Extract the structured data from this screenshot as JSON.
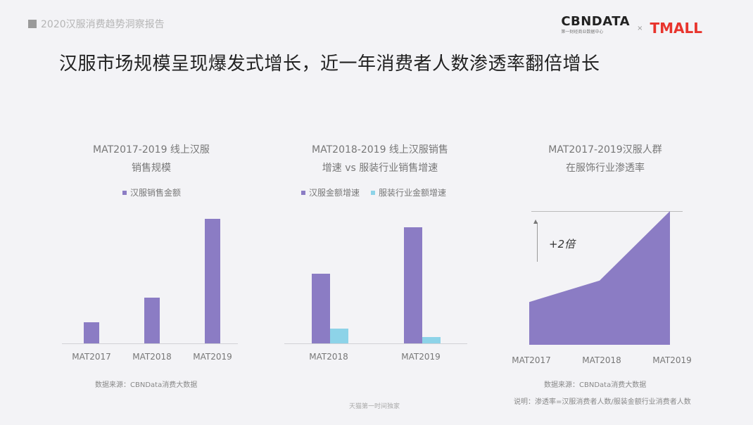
{
  "header": {
    "report_tag": "2020汉服消费趋势洞察报告",
    "logo_cbn": "CBNDATA",
    "logo_cbn_sub": "第一财经商业数据中心",
    "logo_times": "×",
    "logo_tmall": "TMALL",
    "headline": "汉服市场规模呈现爆发式增长，近一年消费者人数渗透率翻倍增长"
  },
  "colors": {
    "purple": "#8b7cc4",
    "light_blue": "#8dd3e8"
  },
  "chart_data": [
    {
      "type": "bar",
      "title_line1": "MAT2017-2019 线上汉服",
      "title_line2": "销售规模",
      "categories": [
        "MAT2017",
        "MAT2018",
        "MAT2019"
      ],
      "series": [
        {
          "name": "汉服销售金额",
          "values": [
            16,
            34,
            93
          ]
        }
      ],
      "ylim": [
        0,
        100
      ],
      "source": "数据来源：CBNData消费大数据"
    },
    {
      "type": "bar",
      "title_line1": "MAT2018-2019 线上汉服销售",
      "title_line2": "增速 vs 服装行业销售增速",
      "categories": [
        "MAT2018",
        "MAT2019"
      ],
      "series": [
        {
          "name": "汉服金额增速",
          "values": [
            52,
            87
          ]
        },
        {
          "name": "服装行业金额增速",
          "values": [
            11,
            5
          ]
        }
      ],
      "ylim": [
        0,
        100
      ]
    },
    {
      "type": "area",
      "title_line1": "MAT2017-2019汉服人群",
      "title_line2": "在服饰行业渗透率",
      "categories": [
        "MAT2017",
        "MAT2018",
        "MAT2019"
      ],
      "values": [
        32,
        48,
        100
      ],
      "ylim": [
        0,
        100
      ],
      "annotation": "+2倍",
      "source": "数据来源：CBNData消费大数据",
      "note": "说明：渗透率=汉服消费者人数/服装金额行业消费者人数"
    }
  ],
  "footer": "天猫第一时间独家"
}
